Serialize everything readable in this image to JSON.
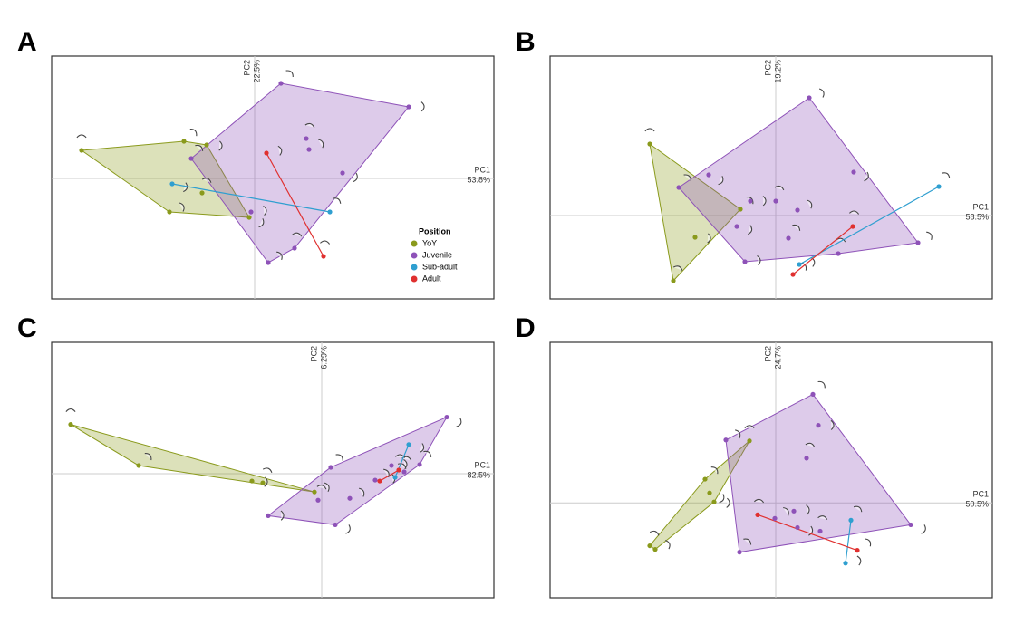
{
  "chart_data": [
    {
      "type": "scatter",
      "panel": "A",
      "xlabel": "PC1",
      "xlabel_percent": "53.8%",
      "ylabel": "PC2",
      "ylabel_percent": "22.5%",
      "xlim": [
        -2.24,
        2.64
      ],
      "ylim": [
        -1.33,
        1.35
      ],
      "legend": true,
      "legend_title": "Position",
      "series": [
        {
          "name": "YoY",
          "color": "#8a9a1c",
          "x": [
            -1.91,
            -0.78,
            -0.53,
            -0.58,
            -0.94,
            -0.06
          ],
          "y": [
            0.31,
            0.41,
            0.37,
            -0.16,
            -0.37,
            -0.43
          ]
        },
        {
          "name": "Juvenile",
          "color": "#8e52b8",
          "x": [
            0.29,
            1.7,
            0.57,
            0.6,
            0.97,
            -0.7,
            -0.04,
            0.44,
            0.15
          ],
          "y": [
            1.05,
            0.79,
            0.44,
            0.32,
            0.06,
            0.22,
            -0.37,
            -0.77,
            -0.93
          ]
        },
        {
          "name": "Sub-adult",
          "color": "#2f9fd0",
          "x": [
            -0.91,
            0.83
          ],
          "y": [
            -0.06,
            -0.37
          ]
        },
        {
          "name": "Adult",
          "color": "#e0302f",
          "x": [
            0.13,
            0.76
          ],
          "y": [
            0.28,
            -0.86
          ]
        }
      ]
    },
    {
      "type": "scatter",
      "panel": "B",
      "xlabel": "PC1",
      "xlabel_percent": "58.5%",
      "ylabel": "PC2",
      "ylabel_percent": "19.2%",
      "xlim": [
        -2.49,
        2.39
      ],
      "ylim": [
        -0.92,
        1.76
      ],
      "legend": false,
      "series": [
        {
          "color": "#8a9a1c",
          "x": [
            -1.39,
            -0.39,
            -0.89,
            -1.13
          ],
          "y": [
            0.79,
            0.07,
            -0.24,
            -0.72
          ]
        },
        {
          "color": "#8e52b8",
          "x": [
            0.37,
            -0.74,
            -1.07,
            -0.28,
            0.0,
            0.24,
            0.86,
            0.14,
            -0.34,
            0.69,
            1.57,
            -0.43
          ],
          "y": [
            1.3,
            0.45,
            0.31,
            0.16,
            0.16,
            0.06,
            0.48,
            -0.25,
            -0.51,
            -0.42,
            -0.3,
            -0.12
          ]
        },
        {
          "color": "#2f9fd0",
          "x": [
            1.8,
            0.26
          ],
          "y": [
            0.32,
            -0.54
          ]
        },
        {
          "color": "#e0302f",
          "x": [
            0.85,
            0.19
          ],
          "y": [
            -0.12,
            -0.65
          ]
        }
      ]
    },
    {
      "type": "scatter",
      "panel": "C",
      "xlabel": "PC1",
      "xlabel_percent": "82.5%",
      "ylabel": "PC2",
      "ylabel_percent": "6.29%",
      "xlim": [
        -2.98,
        1.9
      ],
      "ylim": [
        -1.36,
        1.44
      ],
      "legend": false,
      "series": [
        {
          "color": "#8a9a1c",
          "x": [
            -2.77,
            -2.02,
            -0.77,
            -0.65,
            -0.08
          ],
          "y": [
            0.54,
            0.09,
            -0.08,
            -0.1,
            -0.2
          ]
        },
        {
          "color": "#8e52b8",
          "x": [
            1.38,
            0.1,
            -0.59,
            -0.04,
            0.31,
            0.15,
            1.08,
            0.77,
            0.91,
            0.59
          ],
          "y": [
            0.62,
            0.07,
            -0.46,
            -0.29,
            -0.27,
            -0.56,
            0.1,
            0.09,
            0.02,
            -0.07
          ]
        },
        {
          "color": "#2f9fd0",
          "x": [
            0.96,
            0.81
          ],
          "y": [
            0.32,
            -0.04
          ]
        },
        {
          "color": "#e0302f",
          "x": [
            0.64,
            0.85
          ],
          "y": [
            -0.08,
            0.04
          ]
        }
      ]
    },
    {
      "type": "scatter",
      "panel": "D",
      "xlabel": "PC1",
      "xlabel_percent": "50.5%",
      "ylabel": "PC2",
      "ylabel_percent": "24.7%",
      "xlim": [
        -2.49,
        2.39
      ],
      "ylim": [
        -1.04,
        1.76
      ],
      "legend": false,
      "series": [
        {
          "color": "#8a9a1c",
          "x": [
            -0.29,
            -0.78,
            -0.68,
            -1.39,
            -1.33,
            -0.73
          ],
          "y": [
            0.68,
            0.26,
            0.01,
            -0.47,
            -0.51,
            0.11
          ]
        },
        {
          "color": "#8e52b8",
          "x": [
            0.41,
            0.47,
            0.34,
            -0.55,
            1.49,
            -0.4,
            0.2,
            0.49,
            -0.01,
            0.24
          ],
          "y": [
            1.19,
            0.85,
            0.49,
            0.69,
            -0.24,
            -0.54,
            -0.09,
            -0.31,
            -0.17,
            -0.27
          ]
        },
        {
          "color": "#2f9fd0",
          "x": [
            0.83,
            0.77
          ],
          "y": [
            -0.19,
            -0.66
          ]
        },
        {
          "color": "#e0302f",
          "x": [
            -0.2,
            0.9
          ],
          "y": [
            -0.13,
            -0.52
          ]
        }
      ]
    }
  ]
}
